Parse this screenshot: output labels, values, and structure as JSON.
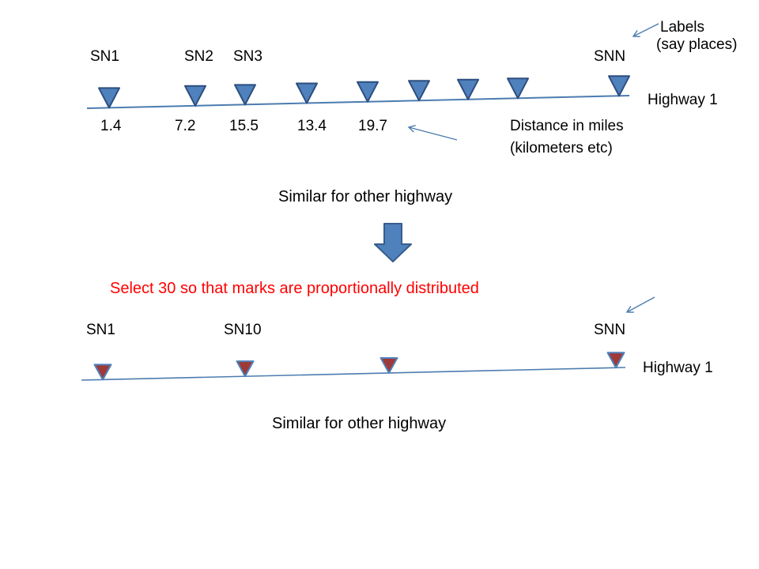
{
  "colors": {
    "line_blue": "#4C7CB0",
    "marker_blue_fill": "#4F81BD",
    "marker_blue_border": "#2E4E7E",
    "marker_red_fill": "#9E3A38",
    "highlight_red": "#FF0000"
  },
  "top_section": {
    "station_labels": [
      "SN1",
      "SN2",
      "SN3",
      "SNN"
    ],
    "marker_positions": [
      138,
      247,
      310,
      388,
      465,
      530,
      592,
      655,
      783
    ],
    "labels_annotation_line1": "Labels",
    "labels_annotation_line2": "(say places)",
    "highway_label": "Highway 1",
    "distances": [
      "1.4",
      "7.2",
      "15.5",
      "13.4",
      "19.7"
    ],
    "distance_annotation_line1": "Distance in miles",
    "distance_annotation_line2": "(kilometers etc)",
    "similar_text": "Similar for other highway"
  },
  "middle": {
    "select_text": "Select 30 so that marks are proportionally distributed"
  },
  "bottom_section": {
    "station_labels": [
      "SN1",
      "SN10",
      "SNN"
    ],
    "marker_positions": [
      130,
      310,
      492,
      779
    ],
    "highway_label": "Highway 1",
    "similar_text": "Similar for other highway"
  }
}
